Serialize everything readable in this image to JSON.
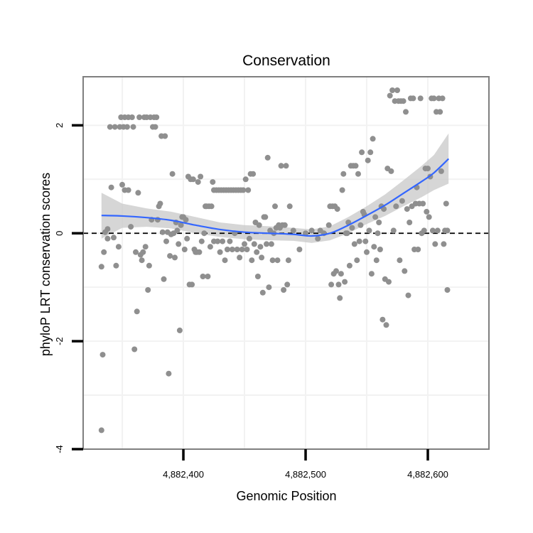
{
  "chart_data": {
    "type": "scatter",
    "title": "Conservation",
    "xlabel": "Genomic Position",
    "ylabel": "phyloP LRT conservation scores",
    "xlim": [
      4882318,
      4882650
    ],
    "ylim": [
      -4,
      2.9
    ],
    "x_ticks": [
      4882400,
      4882500,
      4882600
    ],
    "x_tick_labels": [
      "4,882,400",
      "4,882,500",
      "4,882,600"
    ],
    "y_ticks": [
      2,
      0,
      -2,
      -4
    ],
    "y_tick_labels": [
      "2",
      "0",
      "-2",
      "-4"
    ],
    "grid": true,
    "reference_line": {
      "y": 0,
      "style": "dashed",
      "color": "#000000"
    },
    "colors": {
      "points": "#8f8f8f",
      "smooth": "#3366ff",
      "ribbon": "#c8c8c8",
      "panel_border": "#7f7f7f",
      "grid": "#f2f2f2"
    },
    "points": [
      [
        4882333,
        -3.65
      ],
      [
        4882334,
        -2.25
      ],
      [
        4882333,
        -0.62
      ],
      [
        4882335,
        -0.35
      ],
      [
        4882336,
        0.02
      ],
      [
        4882338,
        0.08
      ],
      [
        4882338,
        -0.1
      ],
      [
        4882340,
        1.97
      ],
      [
        4882341,
        0.85
      ],
      [
        4882343,
        -0.08
      ],
      [
        4882344,
        1.97
      ],
      [
        4882345,
        -0.6
      ],
      [
        4882347,
        -0.25
      ],
      [
        4882348,
        1.97
      ],
      [
        4882349,
        2.15
      ],
      [
        4882350,
        0.9
      ],
      [
        4882351,
        1.97
      ],
      [
        4882352,
        0.8
      ],
      [
        4882352,
        2.15
      ],
      [
        4882354,
        1.97
      ],
      [
        4882355,
        0.8
      ],
      [
        4882355,
        2.15
      ],
      [
        4882357,
        0.12
      ],
      [
        4882358,
        2.15
      ],
      [
        4882359,
        1.97
      ],
      [
        4882360,
        -2.15
      ],
      [
        4882361,
        -0.35
      ],
      [
        4882362,
        -1.45
      ],
      [
        4882363,
        0.75
      ],
      [
        4882364,
        2.15
      ],
      [
        4882365,
        -0.4
      ],
      [
        4882366,
        -0.5
      ],
      [
        4882367,
        -0.35
      ],
      [
        4882368,
        2.15
      ],
      [
        4882369,
        -0.25
      ],
      [
        4882370,
        2.15
      ],
      [
        4882371,
        -1.05
      ],
      [
        4882372,
        -0.6
      ],
      [
        4882373,
        2.15
      ],
      [
        4882374,
        0.25
      ],
      [
        4882375,
        1.97
      ],
      [
        4882376,
        2.15
      ],
      [
        4882377,
        1.97
      ],
      [
        4882378,
        2.15
      ],
      [
        4882379,
        0.25
      ],
      [
        4882380,
        0.5
      ],
      [
        4882381,
        0.55
      ],
      [
        4882382,
        1.8
      ],
      [
        4882383,
        0.02
      ],
      [
        4882384,
        -0.85
      ],
      [
        4882385,
        1.8
      ],
      [
        4882386,
        -0.15
      ],
      [
        4882387,
        0.02
      ],
      [
        4882388,
        -2.6
      ],
      [
        4882389,
        -0.42
      ],
      [
        4882390,
        -0.02
      ],
      [
        4882391,
        1.1
      ],
      [
        4882392,
        0.0
      ],
      [
        4882393,
        -0.45
      ],
      [
        4882394,
        0.2
      ],
      [
        4882395,
        0.05
      ],
      [
        4882396,
        -0.2
      ],
      [
        4882397,
        -1.8
      ],
      [
        4882398,
        0.15
      ],
      [
        4882399,
        0.3
      ],
      [
        4882400,
        0.3
      ],
      [
        4882401,
        -0.3
      ],
      [
        4882402,
        0.25
      ],
      [
        4882403,
        -0.1
      ],
      [
        4882404,
        1.05
      ],
      [
        4882405,
        -0.95
      ],
      [
        4882406,
        1.0
      ],
      [
        4882407,
        -0.95
      ],
      [
        4882408,
        1.0
      ],
      [
        4882409,
        -0.3
      ],
      [
        4882410,
        -0.35
      ],
      [
        4882411,
        -0.35
      ],
      [
        4882412,
        0.95
      ],
      [
        4882413,
        -0.35
      ],
      [
        4882414,
        1.05
      ],
      [
        4882415,
        -0.15
      ],
      [
        4882416,
        -0.8
      ],
      [
        4882417,
        0.0
      ],
      [
        4882418,
        0.5
      ],
      [
        4882419,
        0.5
      ],
      [
        4882420,
        -0.8
      ],
      [
        4882421,
        0.5
      ],
      [
        4882422,
        -0.25
      ],
      [
        4882423,
        0.5
      ],
      [
        4882424,
        0.95
      ],
      [
        4882425,
        0.8
      ],
      [
        4882425,
        -0.15
      ],
      [
        4882427,
        0.8
      ],
      [
        4882428,
        -0.15
      ],
      [
        4882429,
        0.8
      ],
      [
        4882430,
        -0.35
      ],
      [
        4882431,
        0.8
      ],
      [
        4882432,
        -0.15
      ],
      [
        4882433,
        0.8
      ],
      [
        4882434,
        -0.5
      ],
      [
        4882435,
        0.8
      ],
      [
        4882436,
        -0.3
      ],
      [
        4882437,
        0.8
      ],
      [
        4882438,
        -0.15
      ],
      [
        4882439,
        0.8
      ],
      [
        4882440,
        -0.3
      ],
      [
        4882441,
        0.8
      ],
      [
        4882442,
        0.0
      ],
      [
        4882443,
        0.8
      ],
      [
        4882444,
        -0.3
      ],
      [
        4882445,
        0.8
      ],
      [
        4882446,
        -0.45
      ],
      [
        4882447,
        0.8
      ],
      [
        4882448,
        -0.3
      ],
      [
        4882449,
        0.8
      ],
      [
        4882450,
        -0.2
      ],
      [
        4882451,
        1.0
      ],
      [
        4882452,
        -0.3
      ],
      [
        4882453,
        0.8
      ],
      [
        4882454,
        -0.1
      ],
      [
        4882455,
        1.1
      ],
      [
        4882456,
        -0.5
      ],
      [
        4882457,
        1.1
      ],
      [
        4882458,
        -0.2
      ],
      [
        4882459,
        0.2
      ],
      [
        4882460,
        -0.35
      ],
      [
        4882461,
        -0.8
      ],
      [
        4882462,
        0.15
      ],
      [
        4882463,
        -0.25
      ],
      [
        4882464,
        -0.45
      ],
      [
        4882465,
        -1.1
      ],
      [
        4882466,
        0.3
      ],
      [
        4882467,
        0.3
      ],
      [
        4882468,
        -0.2
      ],
      [
        4882469,
        1.4
      ],
      [
        4882470,
        -1.0
      ],
      [
        4882471,
        0.05
      ],
      [
        4882472,
        -0.2
      ],
      [
        4882473,
        -0.5
      ],
      [
        4882474,
        0.0
      ],
      [
        4882475,
        0.5
      ],
      [
        4882476,
        0.1
      ],
      [
        4882477,
        -0.5
      ],
      [
        4882478,
        0.15
      ],
      [
        4882479,
        0.1
      ],
      [
        4882480,
        1.25
      ],
      [
        4882481,
        0.15
      ],
      [
        4882482,
        -1.05
      ],
      [
        4882483,
        0.15
      ],
      [
        4882484,
        1.25
      ],
      [
        4882485,
        -0.95
      ],
      [
        4882486,
        -0.5
      ],
      [
        4882487,
        0.5
      ],
      [
        4882490,
        0.05
      ],
      [
        4882495,
        -0.3
      ],
      [
        4882500,
        0.0
      ],
      [
        4882505,
        0.05
      ],
      [
        4882510,
        -0.1
      ],
      [
        4882512,
        0.05
      ],
      [
        4882515,
        0.0
      ],
      [
        4882519,
        0.15
      ],
      [
        4882520,
        0.5
      ],
      [
        4882521,
        -0.95
      ],
      [
        4882522,
        0.5
      ],
      [
        4882523,
        -0.75
      ],
      [
        4882524,
        0.5
      ],
      [
        4882525,
        -0.7
      ],
      [
        4882526,
        0.45
      ],
      [
        4882527,
        -0.95
      ],
      [
        4882528,
        -1.2
      ],
      [
        4882529,
        -0.75
      ],
      [
        4882530,
        0.8
      ],
      [
        4882531,
        1.1
      ],
      [
        4882532,
        -0.9
      ],
      [
        4882533,
        0.0
      ],
      [
        4882534,
        0.0
      ],
      [
        4882535,
        0.2
      ],
      [
        4882536,
        -0.6
      ],
      [
        4882537,
        1.25
      ],
      [
        4882538,
        0.1
      ],
      [
        4882539,
        1.25
      ],
      [
        4882540,
        -0.2
      ],
      [
        4882541,
        1.25
      ],
      [
        4882542,
        -0.5
      ],
      [
        4882543,
        1.1
      ],
      [
        4882544,
        -0.15
      ],
      [
        4882545,
        0.15
      ],
      [
        4882546,
        1.5
      ],
      [
        4882547,
        0.4
      ],
      [
        4882548,
        0.35
      ],
      [
        4882549,
        -0.15
      ],
      [
        4882550,
        -0.35
      ],
      [
        4882551,
        1.35
      ],
      [
        4882552,
        0.05
      ],
      [
        4882553,
        1.5
      ],
      [
        4882554,
        -0.75
      ],
      [
        4882555,
        1.75
      ],
      [
        4882556,
        -0.25
      ],
      [
        4882557,
        0.3
      ],
      [
        4882558,
        -0.5
      ],
      [
        4882559,
        0.0
      ],
      [
        4882560,
        0.2
      ],
      [
        4882561,
        -0.3
      ],
      [
        4882562,
        0.5
      ],
      [
        4882563,
        -1.6
      ],
      [
        4882564,
        0.45
      ],
      [
        4882565,
        -0.85
      ],
      [
        4882566,
        -1.7
      ],
      [
        4882567,
        1.2
      ],
      [
        4882568,
        -0.9
      ],
      [
        4882569,
        2.55
      ],
      [
        4882570,
        1.15
      ],
      [
        4882571,
        2.65
      ],
      [
        4882572,
        0.05
      ],
      [
        4882573,
        2.45
      ],
      [
        4882574,
        0.5
      ],
      [
        4882575,
        2.65
      ],
      [
        4882576,
        2.45
      ],
      [
        4882577,
        -0.5
      ],
      [
        4882578,
        2.45
      ],
      [
        4882579,
        0.6
      ],
      [
        4882580,
        2.45
      ],
      [
        4882581,
        -0.7
      ],
      [
        4882582,
        2.25
      ],
      [
        4882583,
        0.45
      ],
      [
        4882584,
        -1.15
      ],
      [
        4882585,
        0.2
      ],
      [
        4882586,
        2.5
      ],
      [
        4882587,
        0.5
      ],
      [
        4882588,
        2.5
      ],
      [
        4882589,
        -0.3
      ],
      [
        4882590,
        0.55
      ],
      [
        4882591,
        0.85
      ],
      [
        4882592,
        -0.3
      ],
      [
        4882593,
        0.55
      ],
      [
        4882594,
        2.5
      ],
      [
        4882595,
        0.0
      ],
      [
        4882596,
        0.55
      ],
      [
        4882597,
        0.05
      ],
      [
        4882598,
        1.2
      ],
      [
        4882599,
        0.4
      ],
      [
        4882600,
        1.2
      ],
      [
        4882601,
        0.3
      ],
      [
        4882602,
        1.05
      ],
      [
        4882603,
        2.5
      ],
      [
        4882604,
        0.05
      ],
      [
        4882605,
        2.5
      ],
      [
        4882606,
        -0.2
      ],
      [
        4882607,
        2.25
      ],
      [
        4882608,
        0.05
      ],
      [
        4882609,
        2.5
      ],
      [
        4882610,
        2.25
      ],
      [
        4882611,
        1.15
      ],
      [
        4882612,
        2.5
      ],
      [
        4882613,
        -0.2
      ],
      [
        4882614,
        0.05
      ],
      [
        4882615,
        0.55
      ],
      [
        4882616,
        -1.05
      ],
      [
        4882616,
        0.05
      ]
    ],
    "smooth_line": [
      [
        4882333,
        0.33
      ],
      [
        4882350,
        0.32
      ],
      [
        4882370,
        0.29
      ],
      [
        4882390,
        0.24
      ],
      [
        4882410,
        0.15
      ],
      [
        4882430,
        0.07
      ],
      [
        4882450,
        0.02
      ],
      [
        4882470,
        0.0
      ],
      [
        4882490,
        -0.02
      ],
      [
        4882505,
        -0.05
      ],
      [
        4882520,
        0.0
      ],
      [
        4882535,
        0.15
      ],
      [
        4882550,
        0.33
      ],
      [
        4882565,
        0.52
      ],
      [
        4882580,
        0.74
      ],
      [
        4882595,
        0.96
      ],
      [
        4882605,
        1.12
      ],
      [
        4882617,
        1.38
      ]
    ],
    "ribbon_upper": [
      [
        4882333,
        0.75
      ],
      [
        4882350,
        0.55
      ],
      [
        4882370,
        0.46
      ],
      [
        4882390,
        0.4
      ],
      [
        4882410,
        0.3
      ],
      [
        4882430,
        0.2
      ],
      [
        4882450,
        0.15
      ],
      [
        4882470,
        0.13
      ],
      [
        4882490,
        0.1
      ],
      [
        4882505,
        0.07
      ],
      [
        4882520,
        0.13
      ],
      [
        4882535,
        0.3
      ],
      [
        4882550,
        0.5
      ],
      [
        4882565,
        0.72
      ],
      [
        4882580,
        0.98
      ],
      [
        4882595,
        1.25
      ],
      [
        4882605,
        1.45
      ],
      [
        4882617,
        1.85
      ]
    ],
    "ribbon_lower": [
      [
        4882333,
        -0.1
      ],
      [
        4882350,
        0.1
      ],
      [
        4882370,
        0.12
      ],
      [
        4882390,
        0.09
      ],
      [
        4882410,
        0.0
      ],
      [
        4882430,
        -0.07
      ],
      [
        4882450,
        -0.11
      ],
      [
        4882470,
        -0.13
      ],
      [
        4882490,
        -0.14
      ],
      [
        4882505,
        -0.18
      ],
      [
        4882520,
        -0.13
      ],
      [
        4882535,
        0.0
      ],
      [
        4882550,
        0.17
      ],
      [
        4882565,
        0.32
      ],
      [
        4882580,
        0.5
      ],
      [
        4882595,
        0.67
      ],
      [
        4882605,
        0.8
      ],
      [
        4882617,
        0.92
      ]
    ]
  }
}
